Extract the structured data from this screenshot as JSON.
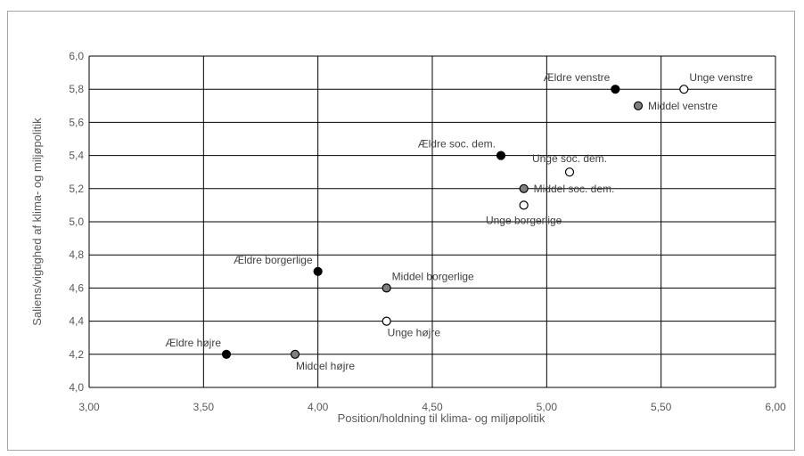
{
  "chart_data": {
    "type": "scatter",
    "title": "",
    "xlabel": "Position/holdning til klima- og miljøpolitik",
    "ylabel": "Saliens/vigtighed af klima- og miljøpolitik",
    "xlim": [
      3.0,
      6.0
    ],
    "ylim": [
      4.0,
      6.0
    ],
    "x_ticks": [
      "3,00",
      "3,50",
      "4,00",
      "4,50",
      "5,00",
      "5,50",
      "6,00"
    ],
    "y_ticks": [
      "4,0",
      "4,2",
      "4,4",
      "4,6",
      "4,8",
      "5,0",
      "5,2",
      "5,4",
      "5,6",
      "5,8",
      "6,0"
    ],
    "grid": true,
    "legend": "none",
    "marker_colors": {
      "Ældre": "#000000",
      "Middel": "#7f7f7f",
      "Unge": "#ffffff"
    },
    "points": [
      {
        "label": "Ældre venstre",
        "group": "Ældre",
        "x": 5.3,
        "y": 5.8,
        "label_pos": "above-left"
      },
      {
        "label": "Unge venstre",
        "group": "Unge",
        "x": 5.6,
        "y": 5.8,
        "label_pos": "above-right"
      },
      {
        "label": "Middel  venstre",
        "group": "Middel",
        "x": 5.4,
        "y": 5.7,
        "label_pos": "right"
      },
      {
        "label": "Ældre soc. dem.",
        "group": "Ældre",
        "x": 4.8,
        "y": 5.4,
        "label_pos": "above-left"
      },
      {
        "label": "Unge soc. dem.",
        "group": "Unge",
        "x": 5.1,
        "y": 5.3,
        "label_pos": "above-center"
      },
      {
        "label": "Middel soc. dem.",
        "group": "Middel",
        "x": 4.9,
        "y": 5.2,
        "label_pos": "right"
      },
      {
        "label": "Unge borgerlige",
        "group": "Unge",
        "x": 4.9,
        "y": 5.1,
        "label_pos": "below-center"
      },
      {
        "label": "Ældre borgerlige",
        "group": "Ældre",
        "x": 4.0,
        "y": 4.7,
        "label_pos": "above-left"
      },
      {
        "label": "Middel borgerlige",
        "group": "Middel",
        "x": 4.3,
        "y": 4.6,
        "label_pos": "above-right"
      },
      {
        "label": "Unge højre",
        "group": "Unge",
        "x": 4.3,
        "y": 4.4,
        "label_pos": "below-right"
      },
      {
        "label": "Ældre højre",
        "group": "Ældre",
        "x": 3.6,
        "y": 4.2,
        "label_pos": "above-left"
      },
      {
        "label": "Middel højre",
        "group": "Middel",
        "x": 3.9,
        "y": 4.2,
        "label_pos": "below-right"
      }
    ]
  }
}
